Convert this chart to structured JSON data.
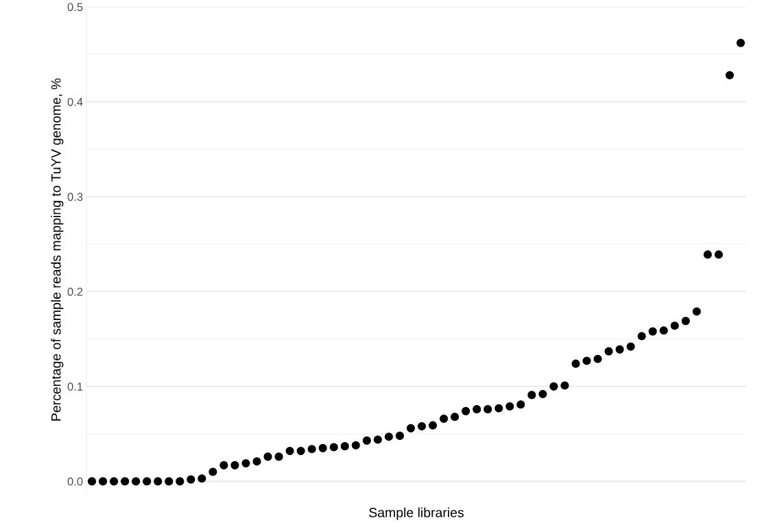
{
  "chart_data": {
    "type": "scatter",
    "xlabel": "Sample libraries",
    "ylabel": "Percentage of sample reads mapping to TuYV genome, %",
    "categories": [
      null,
      null,
      null,
      null,
      null,
      null,
      null,
      null,
      null,
      null,
      null,
      null,
      null,
      null,
      null,
      null,
      null,
      null,
      null,
      null,
      null,
      null,
      null,
      null,
      null,
      null,
      null,
      null,
      null,
      null,
      null,
      null,
      null,
      null,
      null,
      null,
      null,
      null,
      null,
      null,
      null,
      null,
      null,
      null,
      null,
      null,
      null,
      null,
      null,
      null,
      null,
      null,
      null,
      null,
      null,
      null,
      null,
      null,
      null,
      null
    ],
    "values": [
      0,
      0,
      0,
      0,
      0,
      0,
      0,
      0,
      0,
      0.002,
      0.003,
      0.01,
      0.017,
      0.017,
      0.019,
      0.021,
      0.026,
      0.026,
      0.032,
      0.032,
      0.034,
      0.035,
      0.036,
      0.037,
      0.038,
      0.043,
      0.044,
      0.047,
      0.048,
      0.056,
      0.058,
      0.059,
      0.066,
      0.068,
      0.074,
      0.076,
      0.076,
      0.077,
      0.079,
      0.081,
      0.091,
      0.092,
      0.1,
      0.101,
      0.124,
      0.127,
      0.129,
      0.137,
      0.139,
      0.142,
      0.153,
      0.158,
      0.159,
      0.164,
      0.169,
      0.179,
      0.239,
      0.239,
      0.428,
      0.462
    ],
    "color": "#000000",
    "marker": "circle",
    "ylim": [
      -0.012,
      0.5
    ],
    "yticks": [
      {
        "value": 0,
        "label": "0.0"
      },
      0.1,
      0.2,
      0.3,
      0.4,
      0.5
    ],
    "grid": "y"
  }
}
